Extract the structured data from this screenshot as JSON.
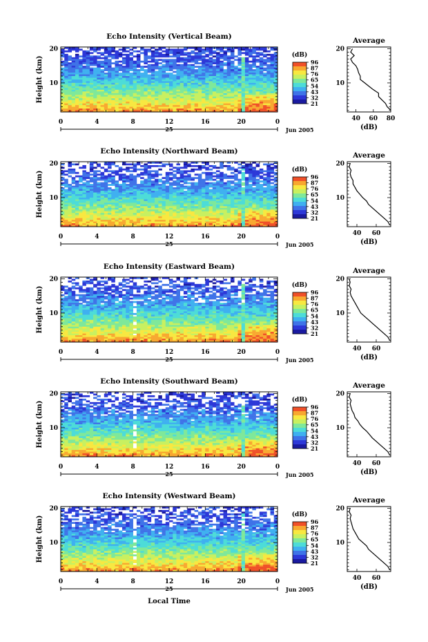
{
  "figure": {
    "y_axis_label": "Height (km)",
    "x_axis_label": "Local Time",
    "date_day_label": "25",
    "date_month_label": "Jun 2005",
    "colorbar_unit": "(dB)",
    "colorbar_ticks": [
      "96",
      "87",
      "76",
      "65",
      "54",
      "43",
      "32",
      "21"
    ],
    "colorbar_colors": [
      "#1a1aa0",
      "#2d38d8",
      "#3f73e8",
      "#3fb0f0",
      "#4ddcd8",
      "#7fe89a",
      "#c8f060",
      "#f8e840",
      "#f8a830",
      "#f05028"
    ],
    "profile_title": "Average",
    "profile_xlabel": "(dB)"
  },
  "chart_data": [
    {
      "type": "heatmap",
      "title": "Echo Intensity (Vertical Beam)",
      "xlabel": "",
      "ylabel": "Height (km)",
      "xticks": [
        "0",
        "4",
        "8",
        "12",
        "16",
        "20",
        "0"
      ],
      "yticks": [
        "10",
        "20"
      ],
      "xlim": [
        0,
        24
      ],
      "ylim": [
        1.5,
        20.5
      ],
      "colorbar": {
        "label": "(dB)",
        "ticks": [
          96,
          87,
          76,
          65,
          54,
          43,
          32,
          21
        ]
      },
      "profile": {
        "title": "Average",
        "xlabel": "(dB)",
        "xticks": [
          "40",
          "60",
          "80"
        ],
        "xlim": [
          30,
          80
        ],
        "yticks": [
          "10",
          "20"
        ],
        "height_km": [
          2,
          3,
          4,
          5,
          6,
          7,
          8,
          9,
          10,
          11,
          12,
          13,
          14,
          15,
          16,
          17,
          18,
          19,
          20
        ],
        "avg_db": [
          80,
          76,
          74,
          70,
          66,
          66,
          60,
          55,
          50,
          45,
          45,
          43,
          42,
          40,
          36,
          34,
          38,
          34,
          36
        ]
      }
    },
    {
      "type": "heatmap",
      "title": "Echo Intensity (Northward Beam)",
      "xlabel": "",
      "ylabel": "Height (km)",
      "xticks": [
        "0",
        "4",
        "8",
        "12",
        "16",
        "20",
        "0"
      ],
      "yticks": [
        "10",
        "20"
      ],
      "xlim": [
        0,
        24
      ],
      "ylim": [
        1.5,
        20.5
      ],
      "colorbar": {
        "label": "(dB)",
        "ticks": [
          96,
          87,
          76,
          65,
          54,
          43,
          32,
          21
        ]
      },
      "profile": {
        "title": "Average",
        "xlabel": "(dB)",
        "xticks": [
          "40",
          "60"
        ],
        "xlim": [
          30,
          75
        ],
        "yticks": [
          "10",
          "20"
        ],
        "height_km": [
          2,
          3,
          4,
          5,
          6,
          7,
          8,
          9,
          10,
          11,
          12,
          13,
          14,
          15,
          16,
          17,
          18,
          19,
          20
        ],
        "avg_db": [
          74,
          72,
          68,
          64,
          60,
          56,
          52,
          50,
          46,
          43,
          40,
          38,
          36,
          36,
          34,
          33,
          34,
          32,
          33
        ]
      }
    },
    {
      "type": "heatmap",
      "title": "Echo Intensity (Eastward Beam)",
      "xlabel": "",
      "ylabel": "Height (km)",
      "xticks": [
        "0",
        "4",
        "8",
        "12",
        "16",
        "20",
        "0"
      ],
      "yticks": [
        "10",
        "20"
      ],
      "xlim": [
        0,
        24
      ],
      "ylim": [
        1.5,
        20.5
      ],
      "colorbar": {
        "label": "(dB)",
        "ticks": [
          96,
          87,
          76,
          65,
          54,
          43,
          32,
          21
        ]
      },
      "profile": {
        "title": "Average",
        "xlabel": "(dB)",
        "xticks": [
          "40",
          "60"
        ],
        "xlim": [
          30,
          75
        ],
        "yticks": [
          "10",
          "20"
        ],
        "height_km": [
          2,
          3,
          4,
          5,
          6,
          7,
          8,
          9,
          10,
          11,
          12,
          13,
          14,
          15,
          16,
          17,
          18,
          19,
          20
        ],
        "avg_db": [
          74,
          72,
          68,
          64,
          60,
          56,
          52,
          48,
          44,
          42,
          40,
          38,
          36,
          34,
          33,
          34,
          32,
          33,
          32
        ]
      }
    },
    {
      "type": "heatmap",
      "title": "Echo Intensity (Southward Beam)",
      "xlabel": "",
      "ylabel": "Height (km)",
      "xticks": [
        "0",
        "4",
        "8",
        "12",
        "16",
        "20",
        "0"
      ],
      "yticks": [
        "10",
        "20"
      ],
      "xlim": [
        0,
        24
      ],
      "ylim": [
        1.5,
        20.5
      ],
      "colorbar": {
        "label": "(dB)",
        "ticks": [
          96,
          87,
          76,
          65,
          54,
          43,
          32,
          21
        ]
      },
      "profile": {
        "title": "Average",
        "xlabel": "(dB)",
        "xticks": [
          "40",
          "60"
        ],
        "xlim": [
          30,
          75
        ],
        "yticks": [
          "10",
          "20"
        ],
        "height_km": [
          2,
          3,
          4,
          5,
          6,
          7,
          8,
          9,
          10,
          11,
          12,
          13,
          14,
          15,
          16,
          17,
          18,
          19,
          20
        ],
        "avg_db": [
          74,
          72,
          68,
          64,
          60,
          56,
          53,
          50,
          46,
          43,
          41,
          38,
          37,
          35,
          34,
          33,
          34,
          32,
          33
        ]
      }
    },
    {
      "type": "heatmap",
      "title": "Echo Intensity (Westward Beam)",
      "xlabel": "Local Time",
      "ylabel": "Height (km)",
      "xticks": [
        "0",
        "4",
        "8",
        "12",
        "16",
        "20",
        "0"
      ],
      "yticks": [
        "10",
        "20"
      ],
      "xlim": [
        0,
        24
      ],
      "ylim": [
        1.5,
        20.5
      ],
      "colorbar": {
        "label": "(dB)",
        "ticks": [
          96,
          87,
          76,
          65,
          54,
          43,
          32,
          21
        ]
      },
      "profile": {
        "title": "Average",
        "xlabel": "(dB)",
        "xticks": [
          "40",
          "60"
        ],
        "xlim": [
          30,
          75
        ],
        "yticks": [
          "10",
          "20"
        ],
        "height_km": [
          2,
          3,
          4,
          5,
          6,
          7,
          8,
          9,
          10,
          11,
          12,
          13,
          14,
          15,
          16,
          17,
          18,
          19,
          20
        ],
        "avg_db": [
          74,
          72,
          68,
          64,
          60,
          56,
          52,
          50,
          46,
          42,
          40,
          38,
          36,
          35,
          34,
          33,
          34,
          32,
          33
        ]
      }
    }
  ]
}
